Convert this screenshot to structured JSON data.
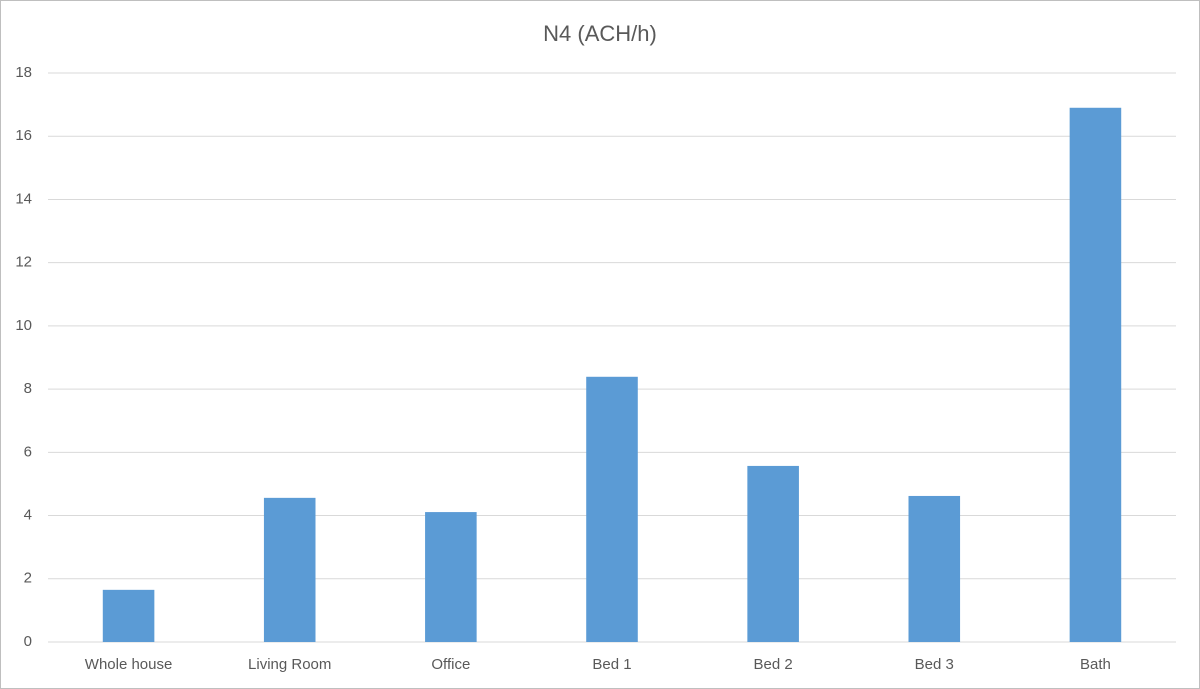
{
  "chart_data": {
    "type": "bar",
    "title": "N4 (ACH/h)",
    "categories": [
      "Whole house",
      "Living Room",
      "Office",
      "Bed 1",
      "Bed 2",
      "Bed 3",
      "Bath"
    ],
    "values": [
      1.65,
      4.56,
      4.11,
      8.39,
      5.57,
      4.62,
      16.9
    ],
    "color": "#5b9bd5",
    "ylim": [
      0,
      18
    ],
    "yticks": [
      0,
      2,
      4,
      6,
      8,
      10,
      12,
      14,
      16,
      18
    ],
    "grid": true
  }
}
